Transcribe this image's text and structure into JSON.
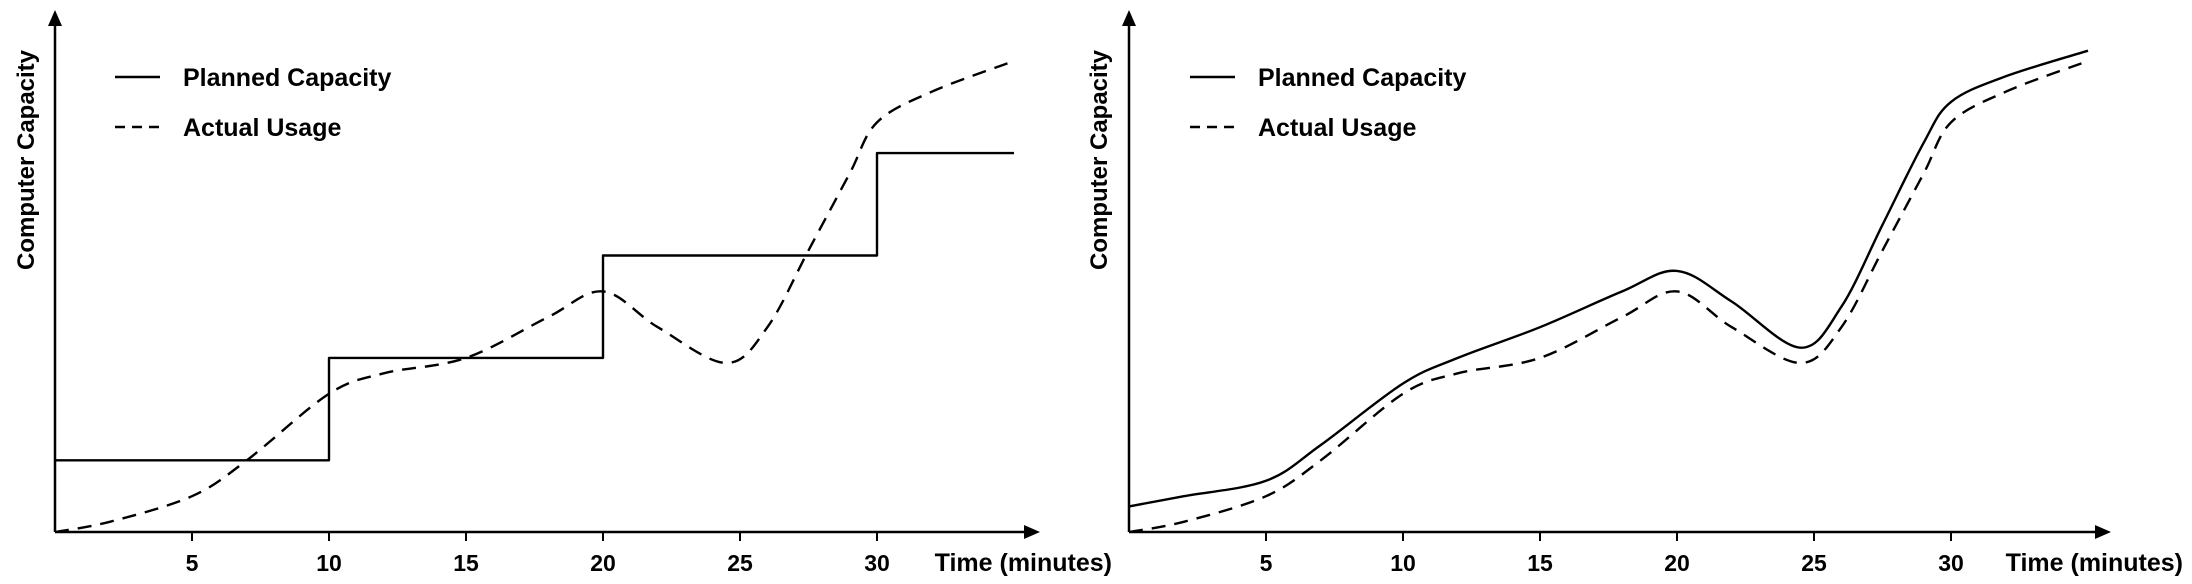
{
  "chart_data": [
    {
      "type": "line",
      "title": "",
      "xlabel": "Time (minutes)",
      "ylabel": "Computer Capacity",
      "xlim": [
        0,
        36
      ],
      "ylim": [
        0,
        100
      ],
      "xticks": [
        5,
        10,
        15,
        20,
        25,
        30
      ],
      "grid": false,
      "legend_position": "top-left",
      "series": [
        {
          "name": "Planned Capacity",
          "style": "solid",
          "step": true,
          "x": [
            0,
            10,
            10,
            20,
            20,
            30,
            30,
            35
          ],
          "y": [
            14,
            14,
            34,
            34,
            54,
            54,
            74,
            74
          ]
        },
        {
          "name": "Actual Usage",
          "style": "dashed",
          "x": [
            0,
            2,
            5,
            7,
            10,
            12,
            15,
            18,
            20,
            22,
            24.5,
            26,
            27.5,
            29,
            30,
            32,
            35
          ],
          "y": [
            0,
            2,
            7,
            14,
            27,
            31,
            34,
            42,
            47,
            40,
            33,
            40,
            55,
            70,
            80,
            86,
            92
          ]
        }
      ]
    },
    {
      "type": "line",
      "title": "",
      "xlabel": "Time (minutes)",
      "ylabel": "Computer Capacity",
      "xlim": [
        0,
        36
      ],
      "ylim": [
        0,
        100
      ],
      "xticks": [
        5,
        10,
        15,
        20,
        25,
        30
      ],
      "grid": false,
      "legend_position": "top-left",
      "series": [
        {
          "name": "Planned Capacity",
          "style": "solid",
          "x": [
            0,
            2,
            5,
            7,
            10,
            12,
            15,
            18,
            20,
            22,
            24.5,
            26,
            27.5,
            29,
            30,
            32,
            35
          ],
          "y": [
            5,
            7,
            10,
            17,
            29,
            34,
            40,
            47,
            51,
            45,
            36,
            44,
            60,
            76,
            84,
            89,
            94
          ]
        },
        {
          "name": "Actual Usage",
          "style": "dashed",
          "x": [
            0,
            2,
            5,
            7,
            10,
            12,
            15,
            18,
            20,
            22,
            24.5,
            26,
            27.5,
            29,
            30,
            32,
            35
          ],
          "y": [
            0,
            2,
            7,
            14,
            27,
            31,
            34,
            42,
            47,
            40,
            33,
            40,
            55,
            70,
            80,
            86,
            92
          ]
        }
      ]
    }
  ]
}
